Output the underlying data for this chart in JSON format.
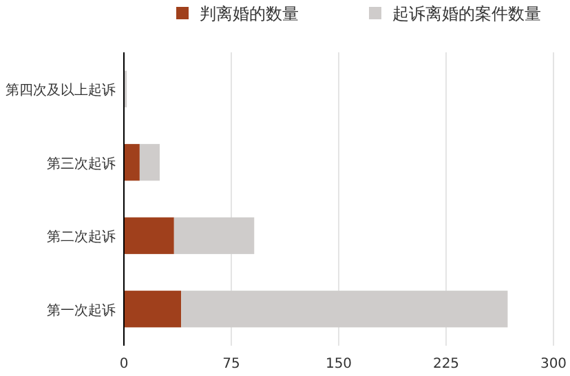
{
  "chart_data": {
    "type": "bar",
    "orientation": "horizontal",
    "stacked": true,
    "categories": [
      "第四次及以上起诉",
      "第三次起诉",
      "第二次起诉",
      "第一次起诉"
    ],
    "series": [
      {
        "name": "判离婚的数量",
        "color": "#a0401c",
        "values": [
          0,
          11,
          35,
          40
        ]
      },
      {
        "name": "起诉离婚的案件数量",
        "color": "#cfcccb",
        "values": [
          2,
          14,
          56,
          228
        ]
      }
    ],
    "xlim": [
      0,
      300
    ],
    "xticks": [
      0,
      75,
      150,
      225,
      300
    ],
    "grid": "x",
    "legend": "top"
  }
}
